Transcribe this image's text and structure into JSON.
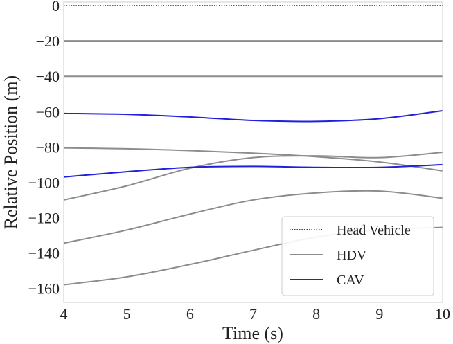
{
  "chart_data": {
    "type": "line",
    "title": "",
    "xlabel": "Time (s)",
    "ylabel": "Relative Position (m)",
    "xlim": [
      4,
      10
    ],
    "ylim": [
      -168,
      2
    ],
    "grid": false,
    "legend_position": "bottom-right",
    "x_ticks": [
      "4",
      "5",
      "6",
      "7",
      "8",
      "9",
      "10"
    ],
    "y_ticks": [
      "0",
      "−20",
      "−40",
      "−60",
      "−80",
      "−100",
      "−120",
      "−140",
      "−160"
    ],
    "x_tick_values": [
      4,
      5,
      6,
      7,
      8,
      9,
      10
    ],
    "y_tick_values": [
      0,
      -20,
      -40,
      -60,
      -80,
      -100,
      -120,
      -140,
      -160
    ],
    "legend": [
      {
        "label": "Head Vehicle",
        "style": "dotted",
        "color": "#000000"
      },
      {
        "label": "HDV",
        "style": "solid",
        "color": "#8c8c8c"
      },
      {
        "label": "CAV",
        "style": "solid",
        "color": "#1f1fdc"
      }
    ],
    "x": [
      4,
      5,
      6,
      7,
      8,
      9,
      10
    ],
    "series": [
      {
        "name": "Head Vehicle",
        "kind": "head",
        "values": [
          0,
          0,
          0,
          0,
          0,
          0,
          0
        ]
      },
      {
        "name": "HDV 1",
        "kind": "hdv",
        "values": [
          -20,
          -20,
          -20,
          -20,
          -20,
          -20,
          -20
        ]
      },
      {
        "name": "HDV 2",
        "kind": "hdv",
        "values": [
          -40,
          -40,
          -40,
          -40,
          -40,
          -40,
          -40
        ]
      },
      {
        "name": "CAV 1",
        "kind": "cav",
        "values": [
          -61,
          -61.5,
          -63,
          -65,
          -65.5,
          -64,
          -59.5
        ]
      },
      {
        "name": "HDV 3",
        "kind": "hdv",
        "values": [
          -80.5,
          -81,
          -82,
          -83.5,
          -85.5,
          -88.5,
          -93.5
        ]
      },
      {
        "name": "HDV 4",
        "kind": "hdv",
        "values": [
          -110,
          -102,
          -92,
          -86,
          -85,
          -86,
          -83
        ]
      },
      {
        "name": "CAV 2",
        "kind": "cav",
        "values": [
          -97,
          -94,
          -91.5,
          -91,
          -91.5,
          -91.5,
          -90
        ]
      },
      {
        "name": "HDV 5",
        "kind": "hdv",
        "values": [
          -134.5,
          -127,
          -118,
          -110,
          -106,
          -105,
          -109
        ]
      },
      {
        "name": "HDV 6",
        "kind": "hdv",
        "values": [
          -158,
          -153.5,
          -146.5,
          -138.5,
          -131,
          -127,
          -125.5
        ]
      }
    ],
    "colors": {
      "head": "#000000",
      "hdv": "#8c8c8c",
      "cav": "#1f1fdc",
      "frame": "#cccccc"
    }
  }
}
